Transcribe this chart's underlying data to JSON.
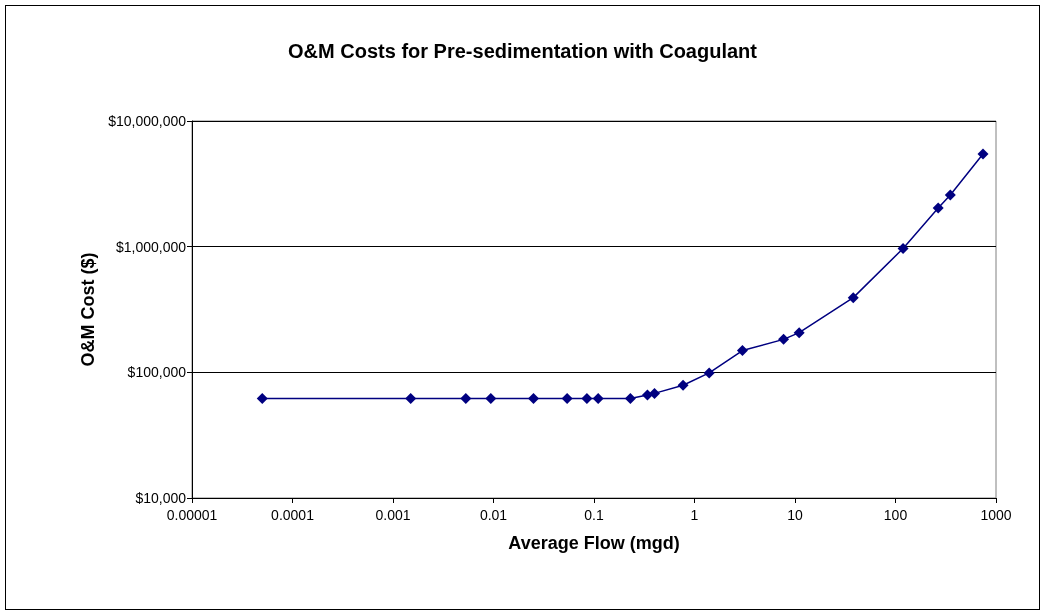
{
  "chart_data": {
    "type": "line",
    "title": "O&M Costs for Pre-sedimentation with Coagulant",
    "xlabel": "Average Flow (mgd)",
    "ylabel": "O&M Cost ($)",
    "log": "xy",
    "grid": "y",
    "marker": "diamond",
    "line_style": "solid",
    "xlim": [
      1e-05,
      1000
    ],
    "xticks": [
      {
        "value": 1e-05,
        "label": "0.00001"
      },
      0.0001,
      0.001,
      0.01,
      0.1,
      1,
      10,
      100,
      1000
    ],
    "ylim": [
      10000,
      10000000
    ],
    "yticks": [
      {
        "value": 10000,
        "label": "$10,000"
      },
      {
        "value": 100000,
        "label": "$100,000"
      },
      {
        "value": 1000000,
        "label": "$1,000,000"
      },
      {
        "value": 10000000,
        "label": "$10,000,000"
      }
    ],
    "series": [
      {
        "color": "#000080",
        "x": [
          5e-05,
          0.0015,
          0.0053,
          0.0094,
          0.025,
          0.054,
          0.085,
          0.11,
          0.23,
          0.34,
          0.4,
          0.77,
          1.4,
          3.0,
          7.7,
          11,
          38,
          119,
          266,
          351,
          742
        ],
        "values": [
          62000,
          62000,
          62000,
          62000,
          62000,
          62000,
          62000,
          62000,
          62000,
          66000,
          68000,
          79000,
          99000,
          149000,
          183000,
          207000,
          393000,
          968000,
          2030000,
          2580000,
          5470000
        ]
      }
    ]
  }
}
